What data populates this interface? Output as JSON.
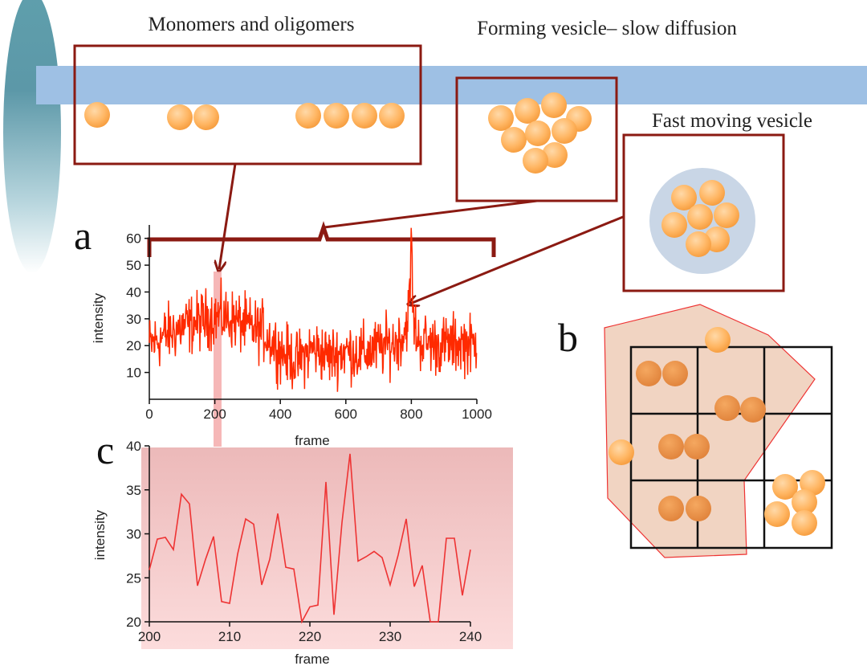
{
  "labels": {
    "monomers": "Monomers and oligomers",
    "forming": "Forming vesicle– slow diffusion",
    "fast": "Fast moving vesicle",
    "panel_a": "a",
    "panel_b": "b",
    "panel_c": "c"
  },
  "colors": {
    "membrane": "#9ec0e4",
    "box_stroke": "#8b1a12",
    "arrow": "#8b1a12",
    "particle_light": "#ffc17a",
    "particle_dark": "#f2994a",
    "trace": "#ff2a00",
    "zoom_trace": "#ee3333",
    "zoom_bg_top": "#ebb8b8",
    "zoom_bg_bottom": "#fbdada",
    "grid_region": "#e8b899",
    "vesicle_halo": "#c9d6e6"
  },
  "chart_data": [
    {
      "id": "a",
      "type": "line",
      "xlabel": "frame",
      "ylabel": "intensity",
      "xlim": [
        0,
        1000
      ],
      "ylim": [
        0,
        65
      ],
      "xticks": [
        0,
        200,
        400,
        600,
        800,
        1000
      ],
      "yticks": [
        10,
        20,
        30,
        40,
        50,
        60
      ],
      "series": [
        {
          "description": "noisy intensity trace, ~1000 frames",
          "x": [
            0,
            50,
            100,
            150,
            200,
            250,
            300,
            350,
            400,
            450,
            500,
            550,
            600,
            650,
            700,
            750,
            780,
            795,
            800,
            805,
            820,
            850,
            900,
            950,
            1000
          ],
          "y": [
            20,
            24,
            27,
            29,
            31,
            30,
            27,
            25,
            18,
            14,
            19,
            16,
            18,
            17,
            19,
            21,
            25,
            36,
            67,
            30,
            22,
            21,
            20,
            21,
            20
          ]
        }
      ]
    },
    {
      "id": "c",
      "type": "line",
      "xlabel": "frame",
      "ylabel": "intensity",
      "xlim": [
        200,
        240
      ],
      "ylim": [
        20,
        40
      ],
      "xticks": [
        200,
        210,
        220,
        230,
        240
      ],
      "yticks": [
        20,
        25,
        30,
        35,
        40
      ],
      "series": [
        {
          "x": [
            200,
            201,
            202,
            203,
            204,
            205,
            206,
            207,
            208,
            209,
            210,
            211,
            212,
            213,
            214,
            215,
            216,
            217,
            218,
            219,
            220,
            221,
            222,
            223,
            224,
            225,
            226,
            227,
            228,
            229,
            230,
            231,
            232,
            233,
            234,
            235,
            236,
            237,
            238,
            239,
            240
          ],
          "y": [
            25.9,
            29.4,
            29.6,
            28.2,
            34.5,
            33.4,
            24.1,
            27.1,
            29.7,
            22.3,
            22.1,
            27.7,
            31.7,
            31.1,
            24.2,
            27.1,
            32.3,
            26.2,
            26.0,
            19.8,
            21.7,
            21.9,
            35.9,
            20.8,
            31.3,
            39.1,
            26.9,
            27.4,
            28.0,
            27.3,
            24.2,
            27.6,
            31.7,
            24.0,
            26.4,
            19.9,
            20.0,
            29.5,
            29.5,
            23.0,
            28.2
          ]
        }
      ]
    }
  ]
}
